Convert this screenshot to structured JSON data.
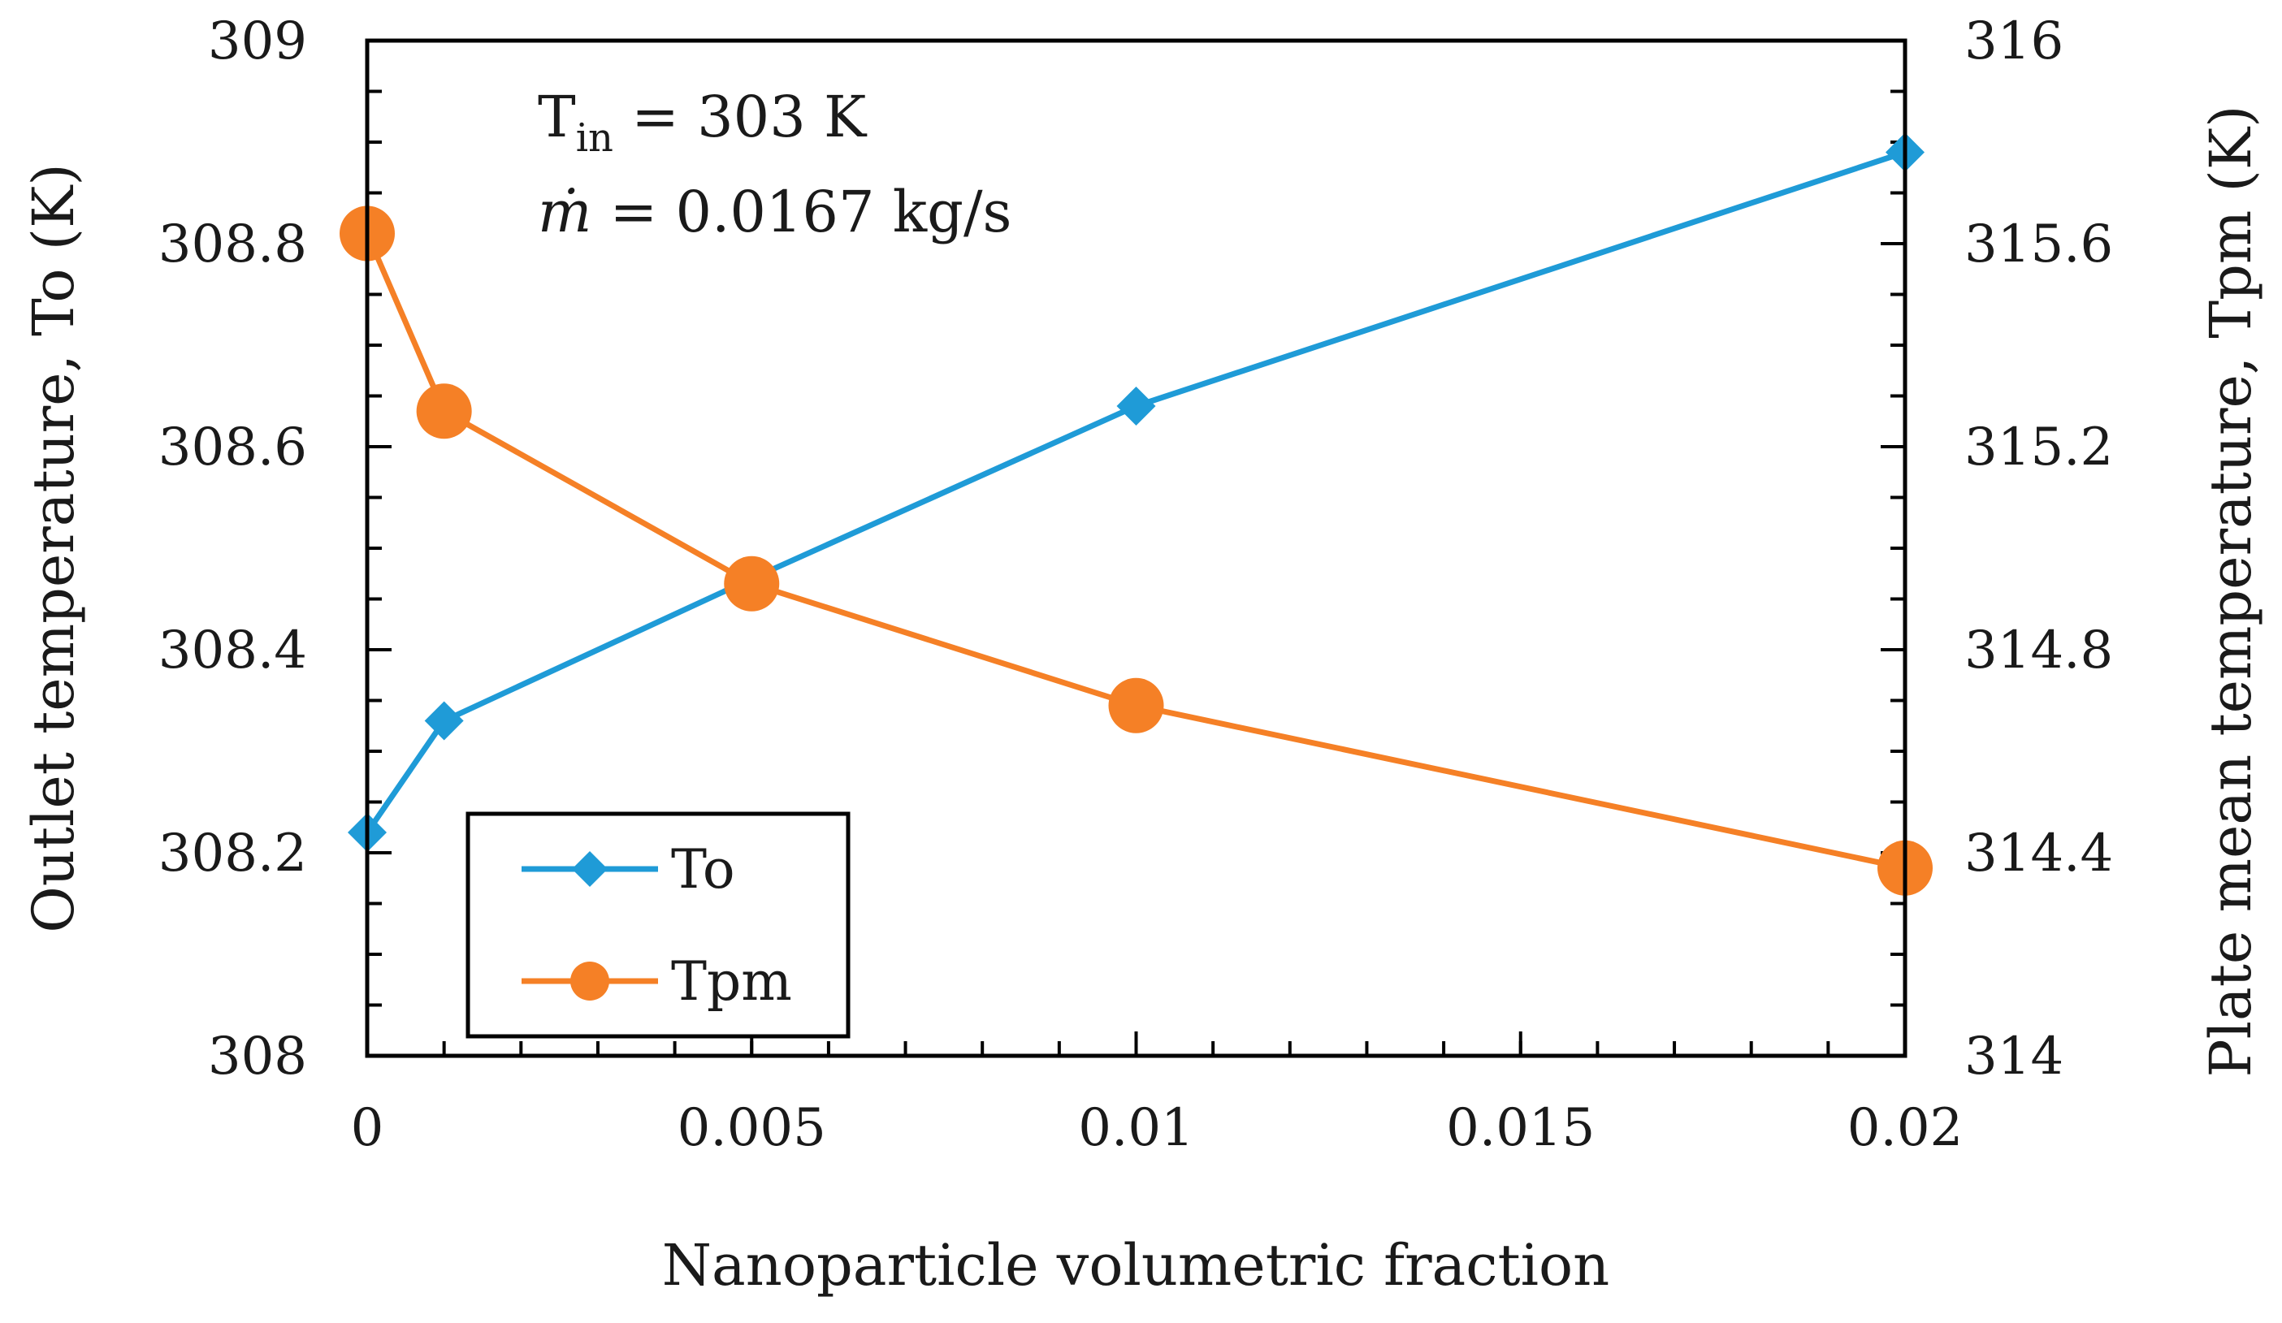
{
  "chart_data": {
    "type": "line",
    "title": "",
    "xlabel": "Nanoparticle volumetric fraction",
    "ylabel_left": "Outlet temperature, To (K)",
    "ylabel_right": "Plate mean temperature, Tpm (K)",
    "xlim": [
      0,
      0.02
    ],
    "ylim_left": [
      308,
      309
    ],
    "ylim_right": [
      314,
      316
    ],
    "x_ticks": [
      {
        "value": 0,
        "label": "0"
      },
      {
        "value": 0.005,
        "label": "0.005"
      },
      {
        "value": 0.01,
        "label": "0.01"
      },
      {
        "value": 0.015,
        "label": "0.015"
      },
      {
        "value": 0.02,
        "label": "0.02"
      }
    ],
    "y_left_ticks": [
      {
        "value": 308,
        "label": "308"
      },
      {
        "value": 308.2,
        "label": "308.2"
      },
      {
        "value": 308.4,
        "label": "308.4"
      },
      {
        "value": 308.6,
        "label": "308.6"
      },
      {
        "value": 308.8,
        "label": "308.8"
      },
      {
        "value": 309,
        "label": "309"
      }
    ],
    "y_right_ticks": [
      {
        "value": 314,
        "label": "314"
      },
      {
        "value": 314.4,
        "label": "314.4"
      },
      {
        "value": 314.8,
        "label": "314.8"
      },
      {
        "value": 315.2,
        "label": "315.2"
      },
      {
        "value": 315.6,
        "label": "315.6"
      },
      {
        "value": 316,
        "label": "316"
      }
    ],
    "series": [
      {
        "name": "To",
        "axis": "left",
        "marker": "diamond",
        "color": "#1f9bd7",
        "x": [
          0,
          0.001,
          0.005,
          0.01,
          0.02
        ],
        "values": [
          308.22,
          308.33,
          308.47,
          308.64,
          308.89
        ]
      },
      {
        "name": "Tpm",
        "axis": "right",
        "marker": "circle",
        "color": "#f58026",
        "x": [
          0,
          0.001,
          0.005,
          0.01,
          0.02
        ],
        "values": [
          315.62,
          315.27,
          314.93,
          314.69,
          314.37
        ]
      }
    ],
    "annotations": {
      "tin_prefix": "T",
      "tin_sub": "in",
      "tin_rest": " = 303 K",
      "mdot_symbol": "ṁ",
      "mdot_rest": " = 0.0167 kg/s"
    },
    "legend": {
      "position": "bottom-left",
      "entries": [
        "To",
        "Tpm"
      ]
    },
    "grid": false
  }
}
